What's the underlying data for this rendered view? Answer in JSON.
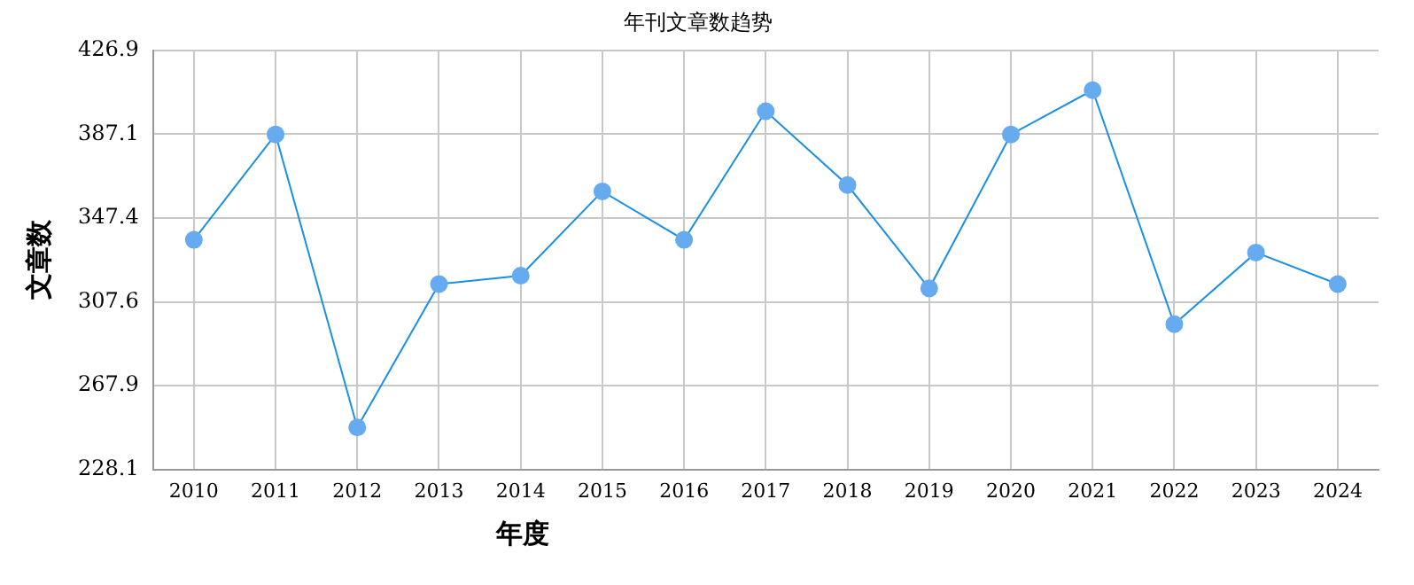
{
  "chart_data": {
    "type": "line",
    "title": "年刊文章数趋势",
    "xlabel": "年度",
    "ylabel": "文章数",
    "categories": [
      "2010",
      "2011",
      "2012",
      "2013",
      "2014",
      "2015",
      "2016",
      "2017",
      "2018",
      "2019",
      "2020",
      "2021",
      "2022",
      "2023",
      "2024"
    ],
    "series": [
      {
        "color": "#1a8fe6",
        "values": [
          337,
          387,
          248,
          316,
          320,
          360,
          337,
          398,
          363,
          314,
          387,
          408,
          297,
          331,
          316
        ]
      }
    ],
    "ylim": [
      228.1,
      426.9
    ],
    "yticks": [
      228.1,
      267.9,
      307.6,
      347.4,
      387.1,
      426.9
    ],
    "grid": true,
    "marker": "circle",
    "legend": false
  }
}
